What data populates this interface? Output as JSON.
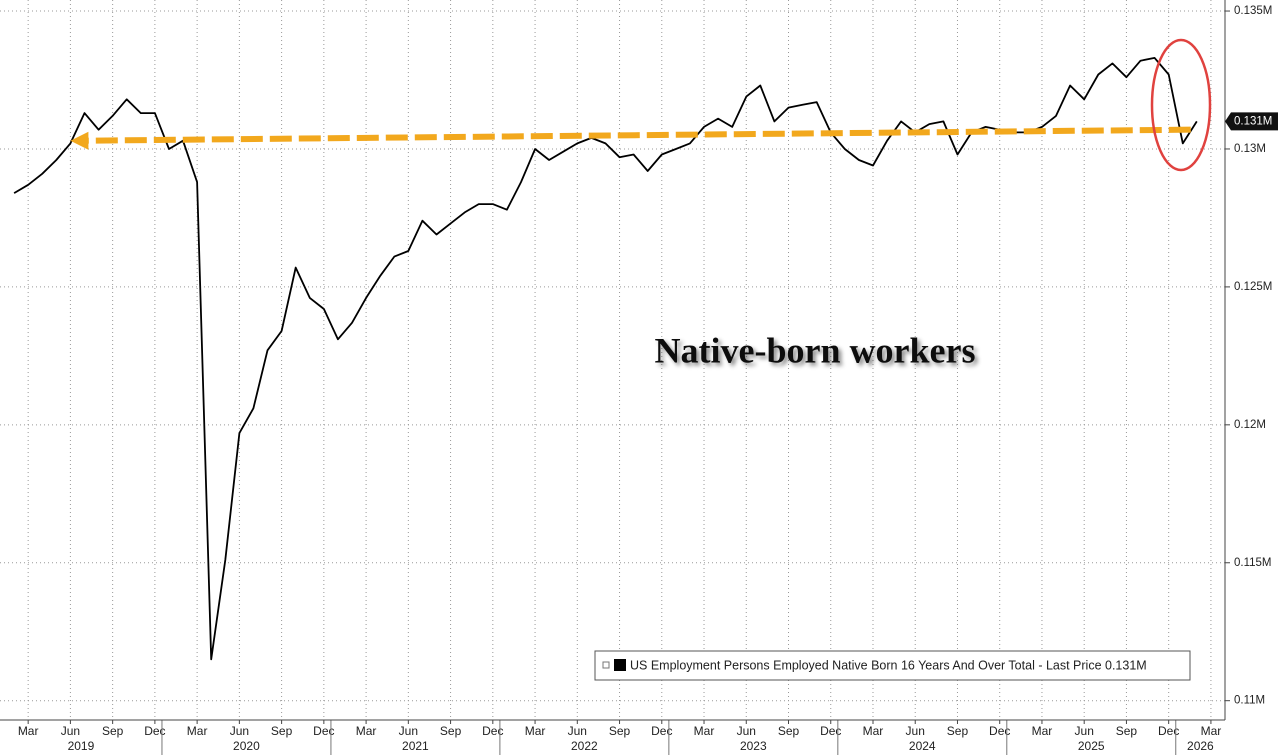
{
  "chart_data": {
    "type": "line",
    "annotation": "Native-born workers",
    "x": [
      "2019-02",
      "2019-03",
      "2019-04",
      "2019-05",
      "2019-06",
      "2019-07",
      "2019-08",
      "2019-09",
      "2019-10",
      "2019-11",
      "2019-12",
      "2020-01",
      "2020-02",
      "2020-03",
      "2020-04",
      "2020-05",
      "2020-06",
      "2020-07",
      "2020-08",
      "2020-09",
      "2020-10",
      "2020-11",
      "2020-12",
      "2021-01",
      "2021-02",
      "2021-03",
      "2021-04",
      "2021-05",
      "2021-06",
      "2021-07",
      "2021-08",
      "2021-09",
      "2021-10",
      "2021-11",
      "2021-12",
      "2022-01",
      "2022-02",
      "2022-03",
      "2022-04",
      "2022-05",
      "2022-06",
      "2022-07",
      "2022-08",
      "2022-09",
      "2022-10",
      "2022-11",
      "2022-12",
      "2023-01",
      "2023-02",
      "2023-03",
      "2023-04",
      "2023-05",
      "2023-06",
      "2023-07",
      "2023-08",
      "2023-09",
      "2023-10",
      "2023-11",
      "2023-12",
      "2024-01",
      "2024-02",
      "2024-03",
      "2024-04",
      "2024-05",
      "2024-06",
      "2024-07",
      "2024-08",
      "2024-09",
      "2024-10",
      "2024-11",
      "2024-12",
      "2025-01",
      "2025-02",
      "2025-03",
      "2025-04",
      "2025-05",
      "2025-06",
      "2025-07",
      "2025-08",
      "2025-09",
      "2025-10",
      "2025-11",
      "2025-12",
      "2026-01",
      "2026-02"
    ],
    "series": [
      {
        "name": "US Employment Persons Employed Native Born 16 Years And Over Total - Last Price 0.131M",
        "color": "#000000",
        "values": [
          0.1284,
          0.1287,
          0.1291,
          0.1296,
          0.1302,
          0.1313,
          0.1307,
          0.1312,
          0.1318,
          0.1313,
          0.1313,
          0.13,
          0.1303,
          0.1288,
          0.1115,
          0.1151,
          0.1197,
          0.1206,
          0.1227,
          0.1234,
          0.1257,
          0.1246,
          0.1242,
          0.1231,
          0.1237,
          0.1246,
          0.1254,
          0.1261,
          0.1263,
          0.1274,
          0.1269,
          0.1273,
          0.1277,
          0.128,
          0.128,
          0.1278,
          0.1288,
          0.13,
          0.1296,
          0.1299,
          0.1302,
          0.1304,
          0.1302,
          0.1297,
          0.1298,
          0.1292,
          0.1298,
          0.13,
          0.1302,
          0.1308,
          0.1311,
          0.1308,
          0.1319,
          0.1323,
          0.131,
          0.1315,
          0.1316,
          0.1317,
          0.1306,
          0.13,
          0.1296,
          0.1294,
          0.1303,
          0.131,
          0.1306,
          0.1309,
          0.131,
          0.1298,
          0.1306,
          0.1308,
          0.1307,
          0.1306,
          0.1306,
          0.1308,
          0.1312,
          0.1323,
          0.1318,
          0.1327,
          0.1331,
          0.1326,
          0.1332,
          0.1333,
          0.1327,
          0.1302,
          0.131
        ]
      }
    ],
    "last_price": {
      "value": 0.131,
      "label": "0.131M"
    },
    "arrow": {
      "x": [
        "2026-01",
        "2019-06"
      ],
      "y": [
        0.1307,
        0.1303
      ],
      "color": "#f2a81d"
    },
    "xlim": [
      "2019-01",
      "2026-04"
    ],
    "ylim": [
      0.1093,
      0.1354
    ],
    "yticks": [
      {
        "value": 0.11,
        "label": "0.11M"
      },
      {
        "value": 0.115,
        "label": "0.115M"
      },
      {
        "value": 0.12,
        "label": "0.12M"
      },
      {
        "value": 0.125,
        "label": "0.125M"
      },
      {
        "value": 0.13,
        "label": "0.13M"
      },
      {
        "value": 0.135,
        "label": "0.135M"
      }
    ],
    "xticks": [
      {
        "value": "2019-03",
        "label": "Mar"
      },
      {
        "value": "2019-06",
        "label": "Jun"
      },
      {
        "value": "2019-09",
        "label": "Sep"
      },
      {
        "value": "2019-12",
        "label": "Dec"
      },
      {
        "value": "2020-03",
        "label": "Mar"
      },
      {
        "value": "2020-06",
        "label": "Jun"
      },
      {
        "value": "2020-09",
        "label": "Sep"
      },
      {
        "value": "2020-12",
        "label": "Dec"
      },
      {
        "value": "2021-03",
        "label": "Mar"
      },
      {
        "value": "2021-06",
        "label": "Jun"
      },
      {
        "value": "2021-09",
        "label": "Sep"
      },
      {
        "value": "2021-12",
        "label": "Dec"
      },
      {
        "value": "2022-03",
        "label": "Mar"
      },
      {
        "value": "2022-06",
        "label": "Jun"
      },
      {
        "value": "2022-09",
        "label": "Sep"
      },
      {
        "value": "2022-12",
        "label": "Dec"
      },
      {
        "value": "2023-03",
        "label": "Mar"
      },
      {
        "value": "2023-06",
        "label": "Jun"
      },
      {
        "value": "2023-09",
        "label": "Sep"
      },
      {
        "value": "2023-12",
        "label": "Dec"
      },
      {
        "value": "2024-03",
        "label": "Mar"
      },
      {
        "value": "2024-06",
        "label": "Jun"
      },
      {
        "value": "2024-09",
        "label": "Sep"
      },
      {
        "value": "2024-12",
        "label": "Dec"
      },
      {
        "value": "2025-03",
        "label": "Mar"
      },
      {
        "value": "2025-06",
        "label": "Jun"
      },
      {
        "value": "2025-09",
        "label": "Sep"
      },
      {
        "value": "2025-12",
        "label": "Dec"
      },
      {
        "value": "2026-03",
        "label": "Mar"
      }
    ],
    "year_labels": [
      "2019",
      "2020",
      "2021",
      "2022",
      "2023",
      "2024",
      "2025",
      "2026"
    ],
    "grid": true
  }
}
